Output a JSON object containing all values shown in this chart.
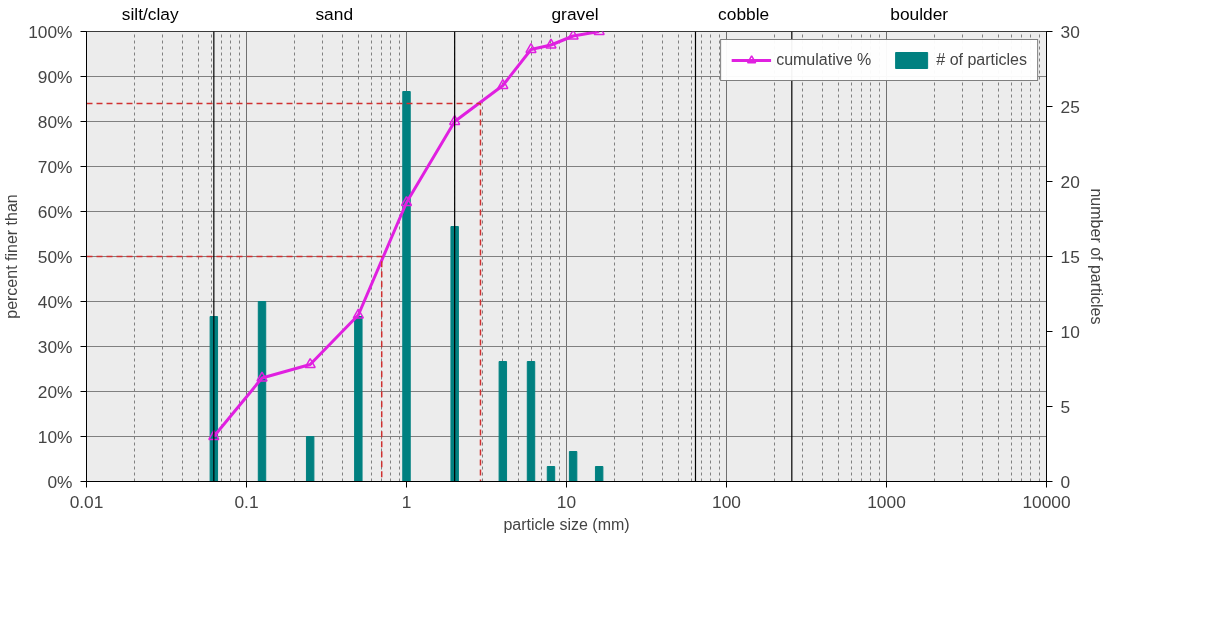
{
  "chart_data": {
    "type": "line",
    "xlabel": "particle size (mm)",
    "ylabel": "percent finer than",
    "y2label": "number of particles",
    "x": [
      0.0625,
      0.125,
      0.25,
      0.5,
      1,
      2,
      4,
      6,
      8,
      11,
      16
    ],
    "series": [
      {
        "name": "cumulative %",
        "color": "#e020e0",
        "marker": "triangle",
        "values": [
          10,
          23,
          26,
          37,
          62,
          80,
          88,
          96,
          97,
          99,
          100
        ]
      },
      {
        "name": "# of particles",
        "type": "bar",
        "axis": "y2",
        "color": "#008080",
        "values": [
          11,
          12,
          3,
          11,
          26,
          17,
          8,
          8,
          1,
          2,
          1
        ]
      },
      {
        "type": "line",
        "color": "#d03030",
        "line_style": "dashed",
        "marker": "none",
        "x": [
          0.01,
          0.7,
          0.7
        ],
        "values": [
          50,
          50,
          0
        ]
      },
      {
        "type": "line",
        "color": "#d03030",
        "line_style": "dashed",
        "marker": "none",
        "x": [
          0.01,
          2.9,
          2.9
        ],
        "values": [
          84,
          84,
          0
        ]
      }
    ],
    "bands": [
      {
        "axis": "x",
        "from": 0.01,
        "to": 0.0625,
        "label": "silt/clay",
        "color": "#ececec"
      },
      {
        "axis": "x",
        "from": 0.0625,
        "to": 2,
        "label": "sand",
        "color": "#ececec"
      },
      {
        "axis": "x",
        "from": 2,
        "to": 64,
        "label": "gravel",
        "color": "#ececec"
      },
      {
        "axis": "x",
        "from": 64,
        "to": 256,
        "label": "cobble",
        "color": "#ececec"
      },
      {
        "axis": "x",
        "from": 256,
        "to": 10000,
        "label": "boulder",
        "color": "#ececec"
      }
    ],
    "log": "x",
    "xlim": [
      0.01,
      10000
    ],
    "xticks": [
      0.01,
      0.1,
      1,
      10,
      100,
      1000,
      10000
    ],
    "ylim": [
      0,
      100
    ],
    "yticks": [
      {
        "value": 0,
        "label": "0%"
      },
      {
        "value": 10,
        "label": "10%"
      },
      {
        "value": 20,
        "label": "20%"
      },
      {
        "value": 30,
        "label": "30%"
      },
      {
        "value": 40,
        "label": "40%"
      },
      {
        "value": 50,
        "label": "50%"
      },
      {
        "value": 60,
        "label": "60%"
      },
      {
        "value": 70,
        "label": "70%"
      },
      {
        "value": 80,
        "label": "80%"
      },
      {
        "value": 90,
        "label": "90%"
      },
      {
        "value": 100,
        "label": "100%"
      }
    ],
    "y2lim": [
      0,
      30
    ],
    "y2ticks": [
      0,
      5,
      10,
      15,
      20,
      25,
      30
    ],
    "grid": true,
    "legend": "top right"
  }
}
